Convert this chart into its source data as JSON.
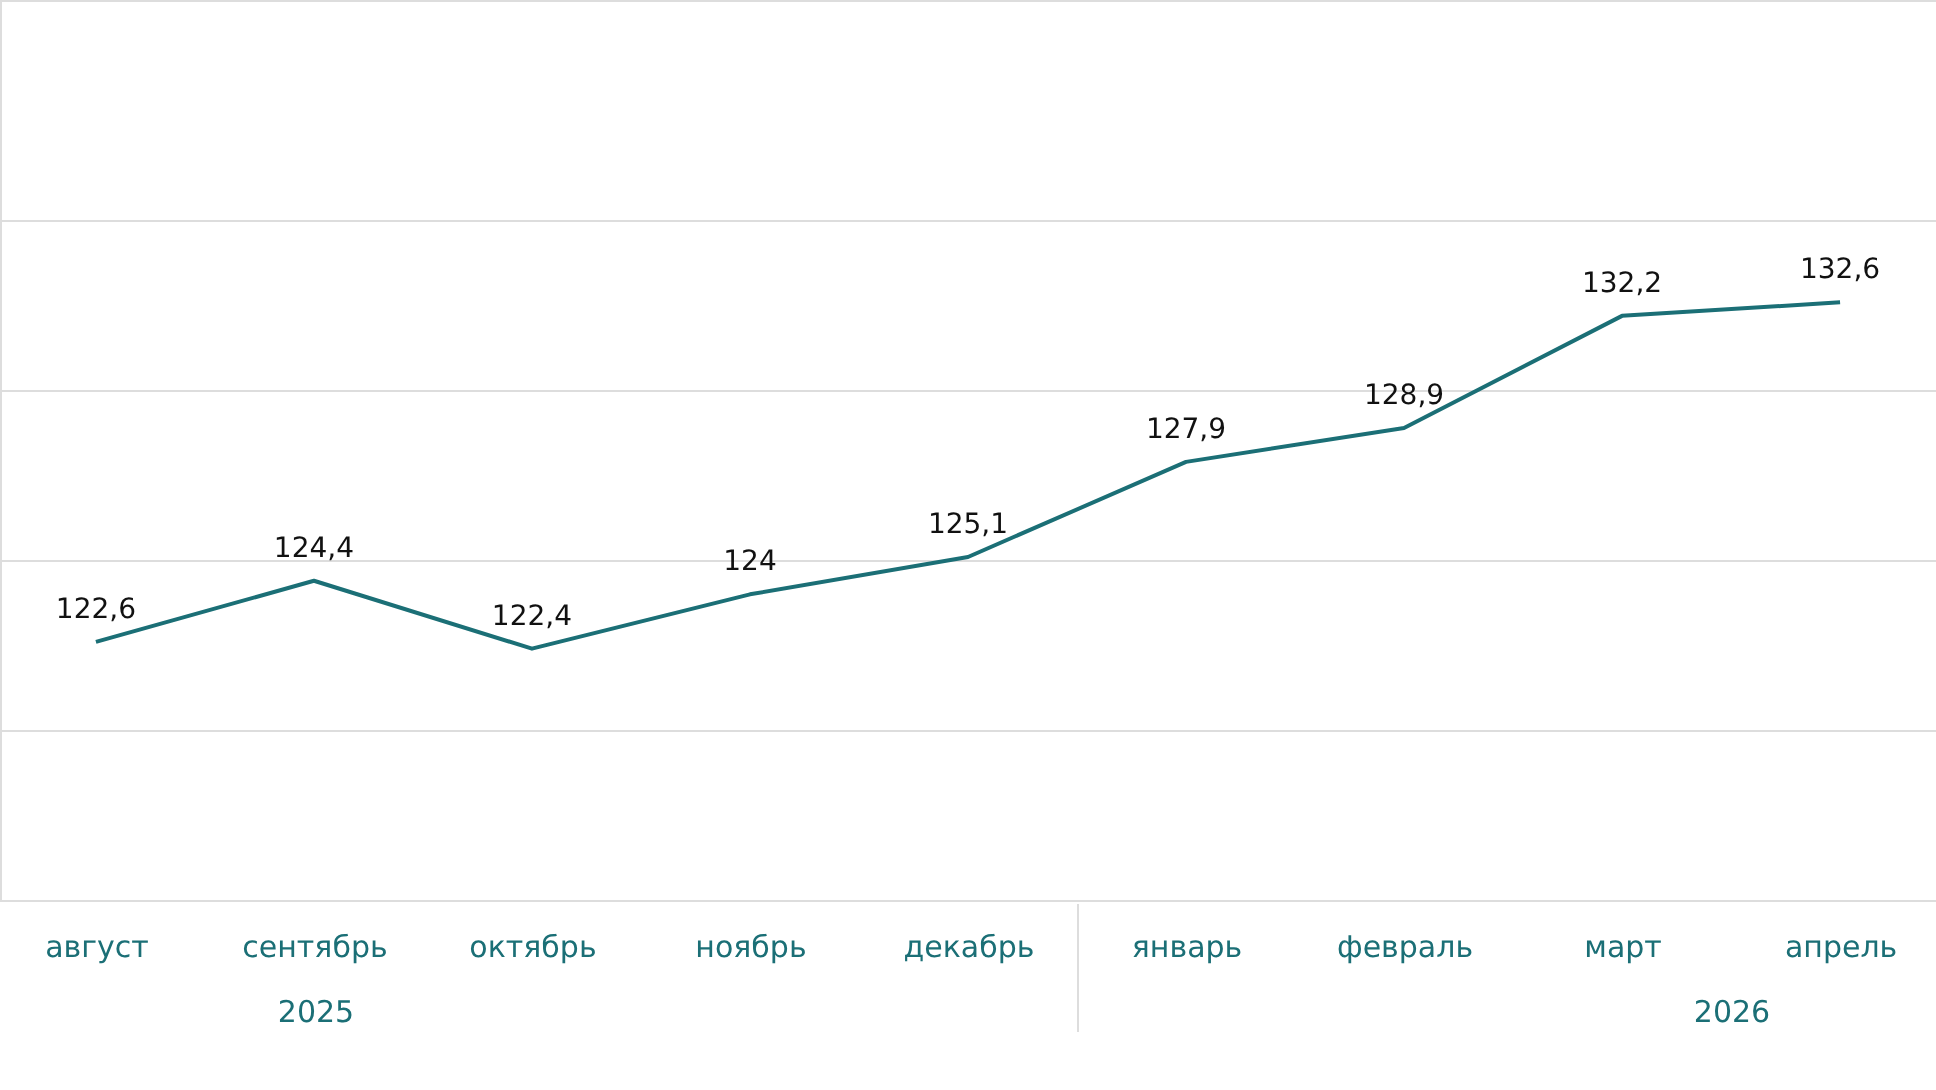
{
  "chart_data": {
    "type": "line",
    "categories": [
      "август",
      "сентябрь",
      "октябрь",
      "ноябрь",
      "декабрь",
      "январь",
      "февраль",
      "март",
      "апрель"
    ],
    "series": [
      {
        "color": "#1b6f76",
        "values": [
          122.6,
          124.4,
          122.4,
          124,
          125.1,
          127.9,
          128.9,
          132.2,
          132.6
        ],
        "value_labels": [
          "122,6",
          "124,4",
          "122,4",
          "124",
          "125,1",
          "127,9",
          "128,9",
          "132,2",
          "132,6"
        ]
      }
    ],
    "ylim": [
      115,
      141.5
    ],
    "yticks": [
      {
        "value": 115,
        "label": null
      },
      {
        "value": 120,
        "label": null
      },
      {
        "value": 125,
        "label": null
      },
      {
        "value": 130,
        "label": null
      },
      {
        "value": 135,
        "label": null
      }
    ],
    "grid": "y",
    "tick_labels": "x",
    "marker": "none",
    "line_style": "solid",
    "annotations": [
      "2025",
      "2026"
    ]
  }
}
